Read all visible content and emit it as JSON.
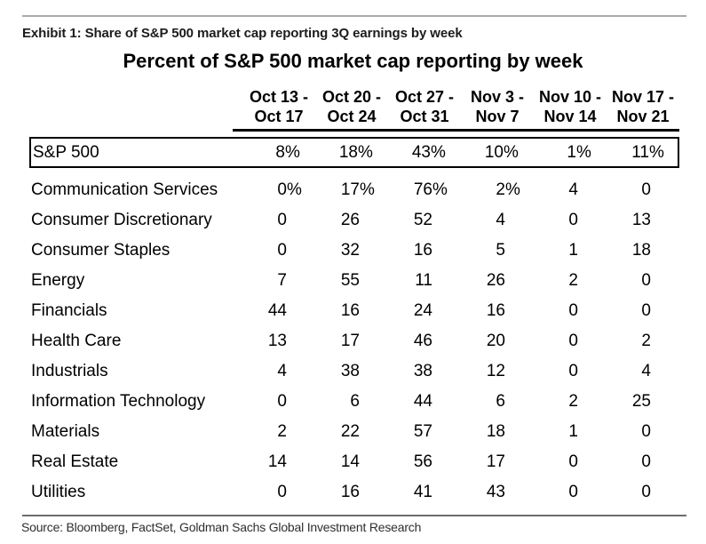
{
  "page": {
    "exhibit_label": "Exhibit 1: Share of S&P 500 market cap reporting 3Q earnings by week",
    "source": "Source: Bloomberg, FactSet, Goldman Sachs Global Investment Research"
  },
  "chart_data": {
    "type": "table",
    "title": "Percent of S&P 500 market cap reporting by week",
    "columns": [
      {
        "line1": "Oct 13 -",
        "line2": "Oct 17"
      },
      {
        "line1": "Oct 20 -",
        "line2": "Oct 24"
      },
      {
        "line1": "Oct 27 -",
        "line2": "Oct 31"
      },
      {
        "line1": "Nov 3 -",
        "line2": "Nov 7"
      },
      {
        "line1": "Nov 10 -",
        "line2": "Nov 14"
      },
      {
        "line1": "Nov 17 -",
        "line2": "Nov 21"
      }
    ],
    "summary_row": {
      "label": "S&P 500",
      "values": [
        "8%",
        "18%",
        "43%",
        "10%",
        "1%",
        "11%"
      ]
    },
    "rows": [
      {
        "label": "Communication Services",
        "values": [
          "0%",
          "17%",
          "76%",
          "2%",
          "4",
          "0"
        ]
      },
      {
        "label": "Consumer Discretionary",
        "values": [
          "0",
          "26",
          "52",
          "4",
          "0",
          "13"
        ]
      },
      {
        "label": "Consumer Staples",
        "values": [
          "0",
          "32",
          "16",
          "5",
          "1",
          "18"
        ]
      },
      {
        "label": "Energy",
        "values": [
          "7",
          "55",
          "11",
          "26",
          "2",
          "0"
        ]
      },
      {
        "label": "Financials",
        "values": [
          "44",
          "16",
          "24",
          "16",
          "0",
          "0"
        ]
      },
      {
        "label": "Health Care",
        "values": [
          "13",
          "17",
          "46",
          "20",
          "0",
          "2"
        ]
      },
      {
        "label": "Industrials",
        "values": [
          "4",
          "38",
          "38",
          "12",
          "0",
          "4"
        ]
      },
      {
        "label": "Information Technology",
        "values": [
          "0",
          "6",
          "44",
          "6",
          "2",
          "25"
        ]
      },
      {
        "label": "Materials",
        "values": [
          "2",
          "22",
          "57",
          "18",
          "1",
          "0"
        ]
      },
      {
        "label": "Real Estate",
        "values": [
          "14",
          "14",
          "56",
          "17",
          "0",
          "0"
        ]
      },
      {
        "label": "Utilities",
        "values": [
          "0",
          "16",
          "41",
          "43",
          "0",
          "0"
        ]
      }
    ],
    "layout": {
      "legend": "none",
      "grid": "off"
    },
    "colors": {
      "text": "#000000",
      "heading_text": "#1c1c1c",
      "source_text": "#2e2e2e",
      "top_rule": "#aaaaaa",
      "bottom_rule": "#6e6e6e",
      "table_rule": "#000000"
    }
  }
}
